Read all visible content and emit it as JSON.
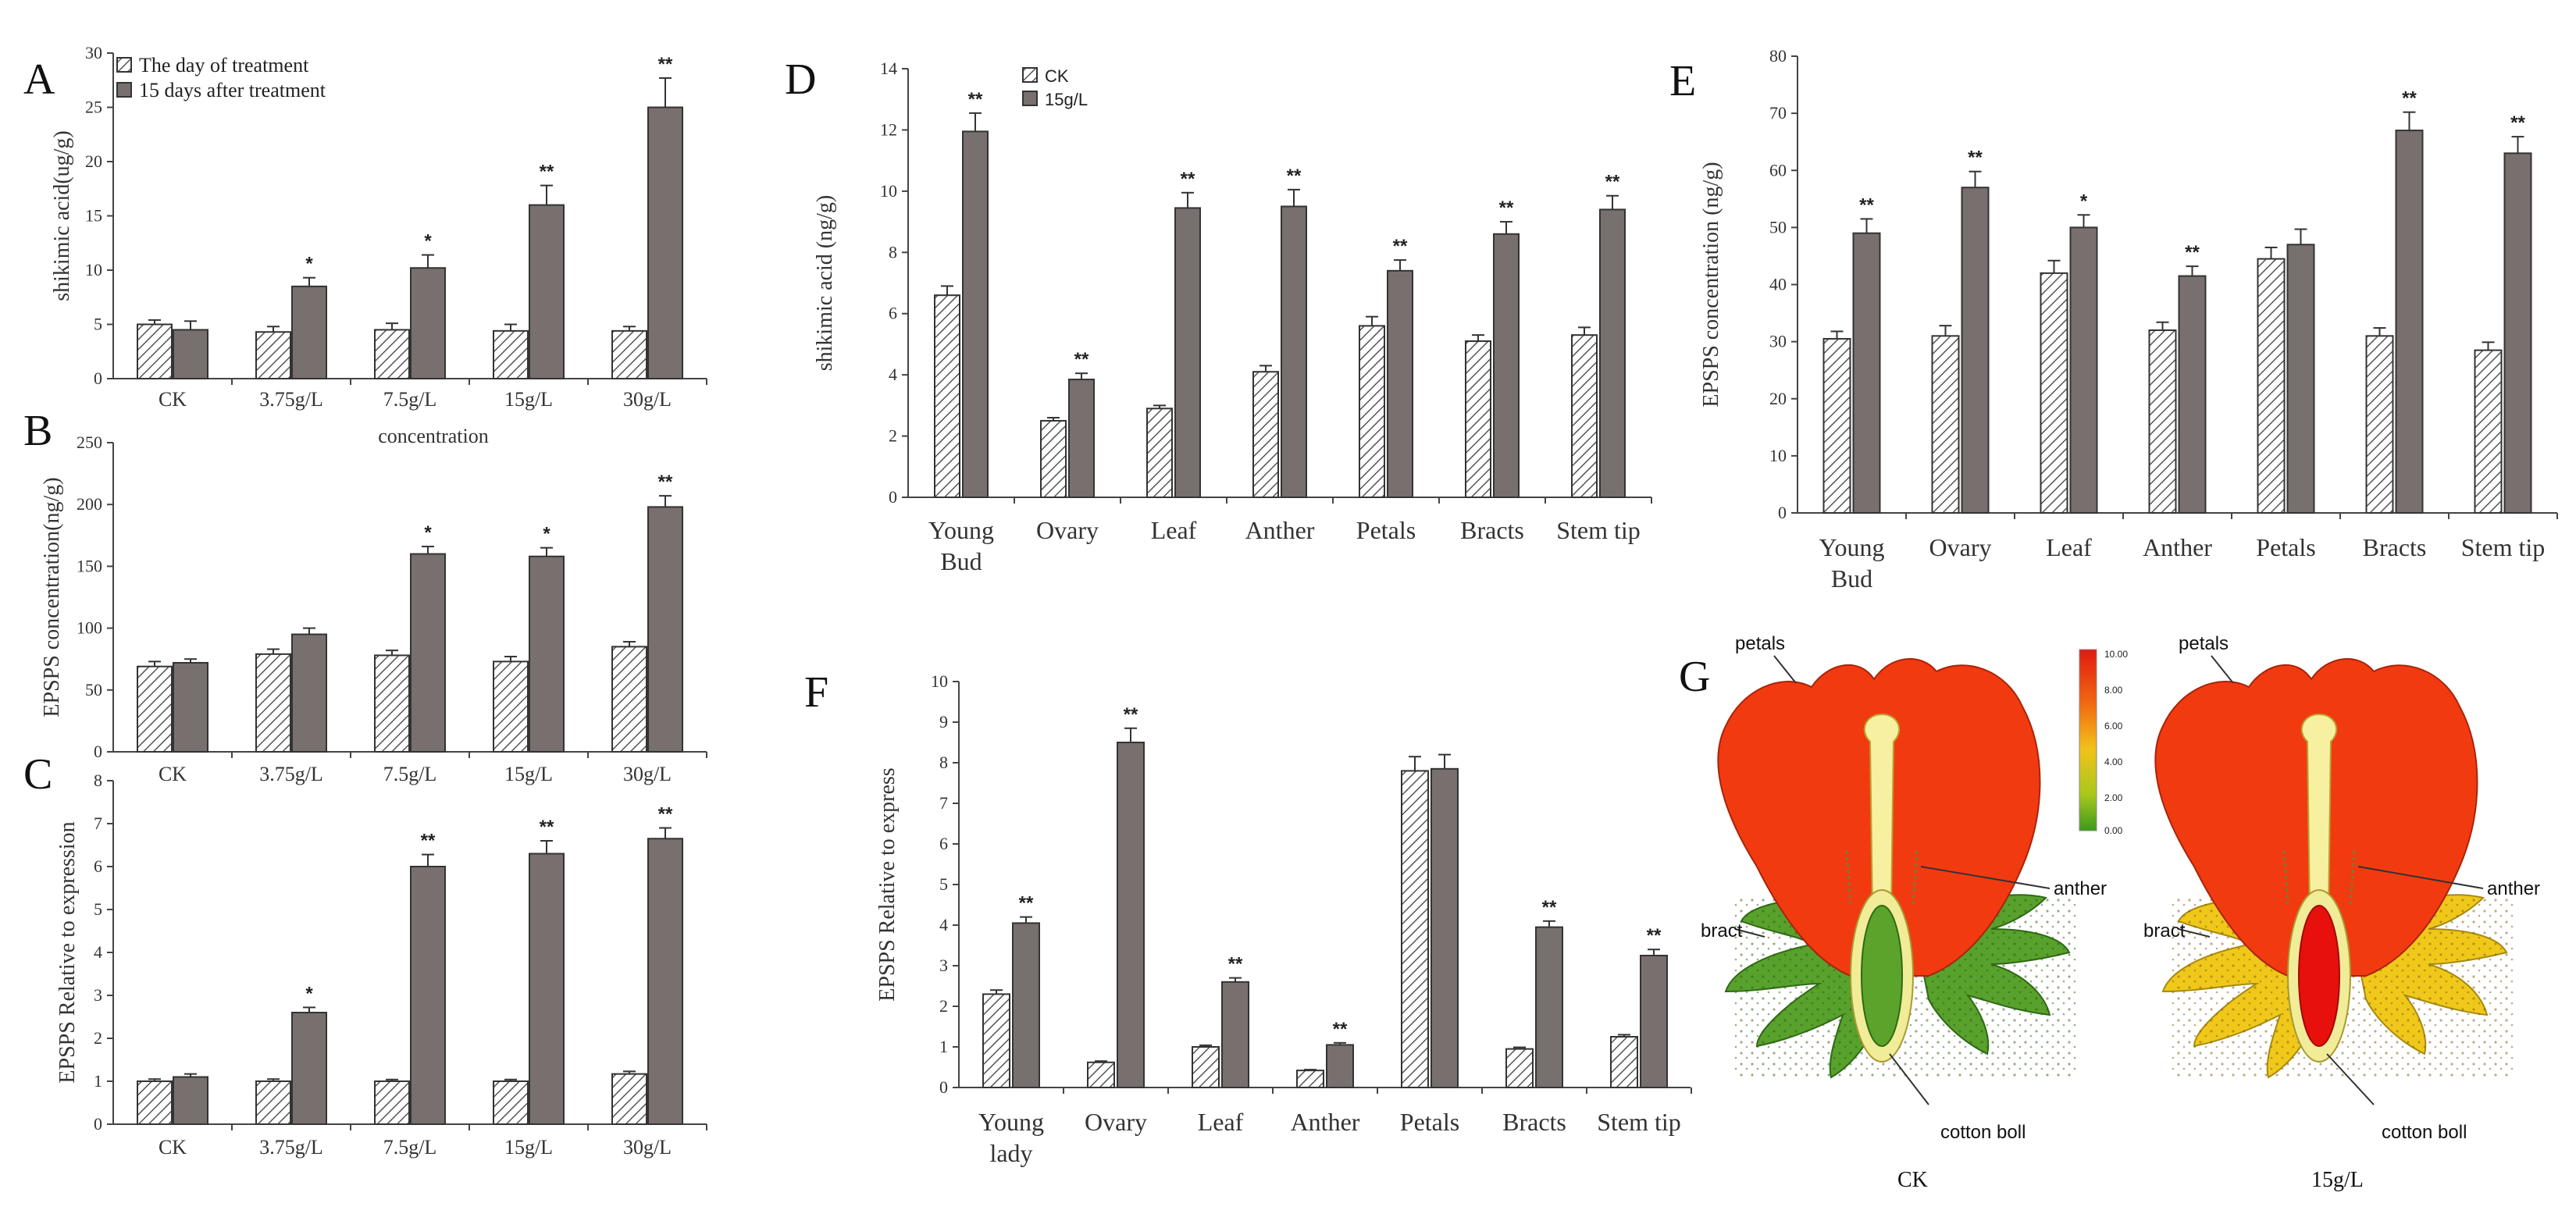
{
  "colors": {
    "dark": "#77706f",
    "hatchStroke": "#555555",
    "axis": "#444444"
  },
  "chart_data": [
    {
      "id": "A",
      "type": "bar",
      "panel_label": "A",
      "ylabel": "shikimic  acid(ug/g)",
      "xlabel": "concentration",
      "ylim": [
        0,
        30
      ],
      "ystep": 5,
      "categories": [
        "CK",
        "3.75g/L",
        "7.5g/L",
        "15g/L",
        "30g/L"
      ],
      "series": [
        {
          "name": "The day of treatment",
          "pattern": "hatch",
          "values": [
            5.0,
            4.3,
            4.5,
            4.4,
            4.4
          ],
          "errors": [
            0.4,
            0.5,
            0.6,
            0.6,
            0.4
          ]
        },
        {
          "name": "15 days after treatment",
          "pattern": "dark",
          "values": [
            4.5,
            8.5,
            10.2,
            16.0,
            25.0
          ],
          "errors": [
            0.8,
            0.8,
            1.2,
            1.8,
            2.7
          ]
        }
      ],
      "sig": [
        "",
        "*",
        "*",
        "**",
        "**"
      ]
    },
    {
      "id": "B",
      "type": "bar",
      "panel_label": "B",
      "ylabel": "EPSPS concentration(ng/g)",
      "xlabel": "",
      "ylim": [
        0,
        250
      ],
      "ystep": 50,
      "categories": [
        "CK",
        "3.75g/L",
        "7.5g/L",
        "15g/L",
        "30g/L"
      ],
      "series": [
        {
          "name": "The day of treatment",
          "pattern": "hatch",
          "values": [
            69,
            79,
            78,
            73,
            85
          ],
          "errors": [
            4,
            4,
            4,
            4,
            4
          ]
        },
        {
          "name": "15 days after treatment",
          "pattern": "dark",
          "values": [
            72,
            95,
            160,
            158,
            198
          ],
          "errors": [
            3,
            5,
            6,
            7,
            9
          ]
        }
      ],
      "sig": [
        "",
        "",
        "*",
        "*",
        "**"
      ]
    },
    {
      "id": "C",
      "type": "bar",
      "panel_label": "C",
      "ylabel": "EPSPS Relative  to expression",
      "xlabel": "",
      "ylim": [
        0,
        8
      ],
      "ystep": 1,
      "categories": [
        "CK",
        "3.75g/L",
        "7.5g/L",
        "15g/L",
        "30g/L"
      ],
      "series": [
        {
          "name": "The day of treatment",
          "pattern": "hatch",
          "values": [
            1.0,
            1.0,
            1.0,
            1.0,
            1.17
          ],
          "errors": [
            0.05,
            0.05,
            0.04,
            0.04,
            0.06
          ]
        },
        {
          "name": "15 days after treatment",
          "pattern": "dark",
          "values": [
            1.1,
            2.6,
            6.0,
            6.3,
            6.65
          ],
          "errors": [
            0.07,
            0.12,
            0.28,
            0.3,
            0.25
          ]
        }
      ],
      "sig": [
        "",
        "*",
        "**",
        "**",
        "**"
      ]
    },
    {
      "id": "D",
      "type": "bar",
      "panel_label": "D",
      "ylabel": "shikimic  acid (ng/g)",
      "xlabel": "",
      "ylim": [
        0,
        14
      ],
      "ystep": 2,
      "categories": [
        "Young Bud",
        "Ovary",
        "Leaf",
        "Anther",
        "Petals",
        "Bracts",
        "Stem tip"
      ],
      "series": [
        {
          "name": "CK",
          "pattern": "hatch",
          "values": [
            6.6,
            2.5,
            2.9,
            4.1,
            5.6,
            5.1,
            5.3
          ],
          "errors": [
            0.3,
            0.1,
            0.1,
            0.2,
            0.3,
            0.2,
            0.25
          ]
        },
        {
          "name": "15g/L",
          "pattern": "dark",
          "values": [
            11.95,
            3.85,
            9.45,
            9.5,
            7.4,
            8.6,
            9.4
          ],
          "errors": [
            0.6,
            0.2,
            0.5,
            0.55,
            0.35,
            0.4,
            0.45
          ]
        }
      ],
      "sig": [
        "**",
        "**",
        "**",
        "**",
        "**",
        "**",
        "**"
      ]
    },
    {
      "id": "E",
      "type": "bar",
      "panel_label": "E",
      "ylabel": "EPSPS concentration  (ng/g)",
      "xlabel": "",
      "ylim": [
        0,
        80
      ],
      "ystep": 10,
      "categories": [
        "Young Bud",
        "Ovary",
        "Leaf",
        "Anther",
        "Petals",
        "Bracts",
        "Stem tip"
      ],
      "series": [
        {
          "name": "CK",
          "pattern": "hatch",
          "values": [
            30.5,
            31,
            42,
            32,
            44.5,
            31,
            28.5
          ],
          "errors": [
            1.3,
            1.8,
            2.2,
            1.4,
            2.0,
            1.4,
            1.4
          ]
        },
        {
          "name": "15g/L",
          "pattern": "dark",
          "values": [
            49,
            57,
            50,
            41.5,
            47,
            67,
            63
          ],
          "errors": [
            2.5,
            2.8,
            2.2,
            1.7,
            2.7,
            3.2,
            2.9
          ]
        }
      ],
      "sig": [
        "**",
        "**",
        "*",
        "**",
        "",
        "**",
        "**"
      ]
    },
    {
      "id": "F",
      "type": "bar",
      "panel_label": "F",
      "ylabel": "EPSPS Relative  to express",
      "xlabel": "",
      "ylim": [
        0,
        10
      ],
      "ystep": 1,
      "categories": [
        "Young lady",
        "Ovary",
        "Leaf",
        "Anther",
        "Petals",
        "Bracts",
        "Stem tip"
      ],
      "series": [
        {
          "name": "CK",
          "pattern": "hatch",
          "values": [
            2.3,
            0.62,
            1.0,
            0.42,
            7.8,
            0.95,
            1.25
          ],
          "errors": [
            0.1,
            0.03,
            0.04,
            0.02,
            0.35,
            0.04,
            0.05
          ]
        },
        {
          "name": "15g/L",
          "pattern": "dark",
          "values": [
            4.05,
            8.5,
            2.6,
            1.05,
            7.85,
            3.95,
            3.25
          ],
          "errors": [
            0.15,
            0.35,
            0.1,
            0.05,
            0.35,
            0.15,
            0.15
          ]
        }
      ],
      "sig": [
        "**",
        "**",
        "**",
        "**",
        "",
        "**",
        "**"
      ]
    }
  ],
  "panel_g": {
    "label": "G",
    "scale_ticks": [
      "10.00",
      "8.00",
      "6.00",
      "4.00",
      "2.00",
      "0.00"
    ],
    "parts": [
      "petals",
      "anther",
      "bract",
      "cotton boll"
    ],
    "captions": [
      "CK",
      "15g/L"
    ]
  }
}
